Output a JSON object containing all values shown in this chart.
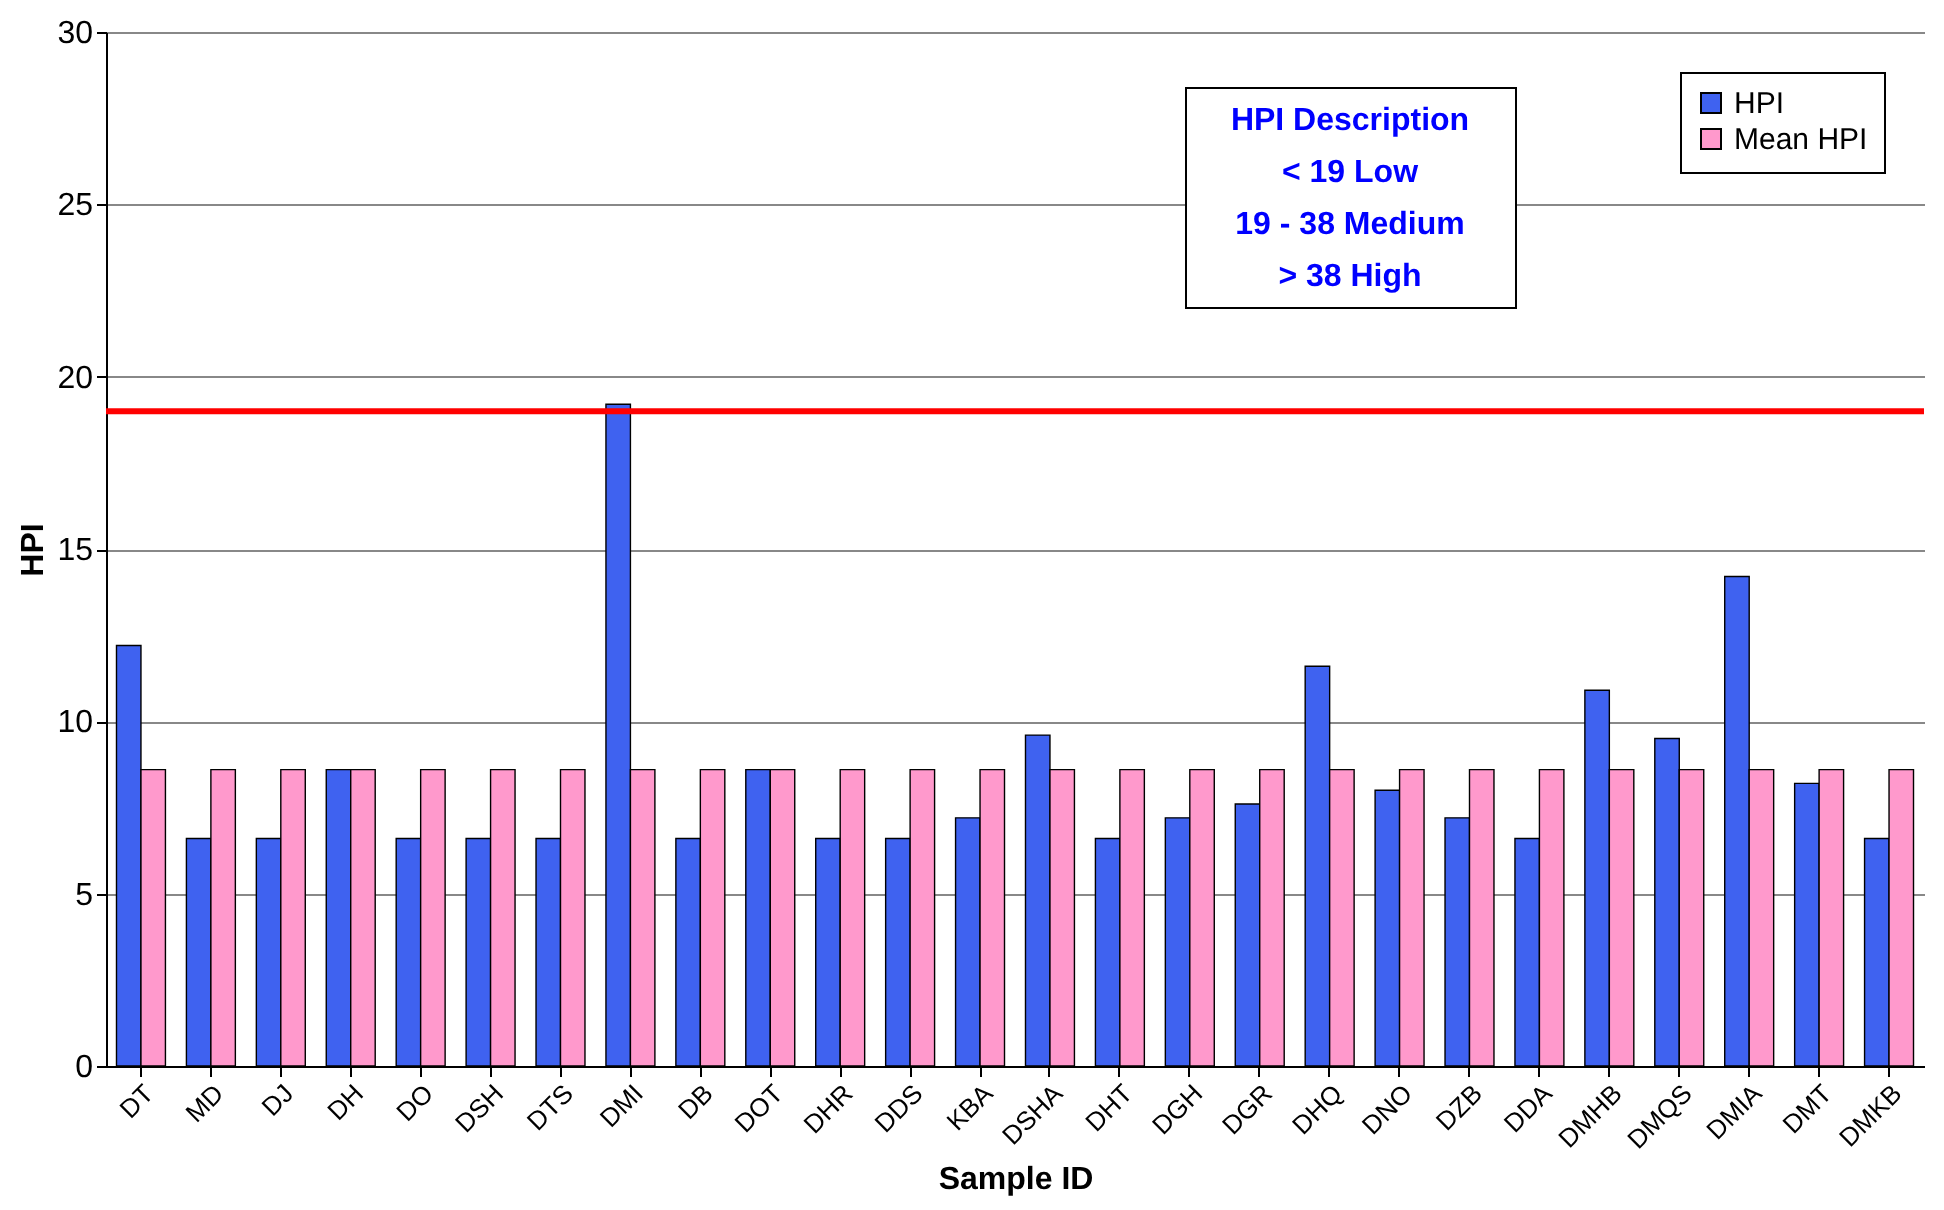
{
  "chart_data": {
    "type": "bar",
    "xlabel": "Sample ID",
    "ylabel": "HPI",
    "categories": [
      "DT",
      "MD",
      "DJ",
      "DH",
      "DO",
      "DSH",
      "DTS",
      "DMI",
      "DB",
      "DOT",
      "DHR",
      "DDS",
      "KBA",
      "DSHA",
      "DHT",
      "DGH",
      "DGR",
      "DHQ",
      "DNO",
      "DZB",
      "DDA",
      "DMHB",
      "DMQS",
      "DMIA",
      "DMT",
      "DMKB"
    ],
    "series": [
      {
        "name": "HPI",
        "color": "#3f62f0",
        "values": [
          12.2,
          6.6,
          6.6,
          8.6,
          6.6,
          6.6,
          6.6,
          19.2,
          6.6,
          8.6,
          6.6,
          6.6,
          7.2,
          9.6,
          6.6,
          7.2,
          7.6,
          11.6,
          8.0,
          7.2,
          6.6,
          10.9,
          9.5,
          14.2,
          8.2,
          6.6
        ]
      },
      {
        "name": "Mean HPI",
        "color": "#ff99cc",
        "values": [
          8.6,
          8.6,
          8.6,
          8.6,
          8.6,
          8.6,
          8.6,
          8.6,
          8.6,
          8.6,
          8.6,
          8.6,
          8.6,
          8.6,
          8.6,
          8.6,
          8.6,
          8.6,
          8.6,
          8.6,
          8.6,
          8.6,
          8.6,
          8.6,
          8.6,
          8.6
        ]
      }
    ],
    "ylim": [
      0,
      30
    ],
    "yticks": [
      0,
      5,
      10,
      15,
      20,
      25,
      30
    ],
    "grid": "y",
    "legend": "top right",
    "ref_lines": [
      {
        "axis": "y",
        "value": 19,
        "color": "#ff0000"
      }
    ],
    "annotations": [
      "HPI  Description",
      "< 19 Low",
      "19 - 38  Medium",
      "> 38 High"
    ]
  }
}
